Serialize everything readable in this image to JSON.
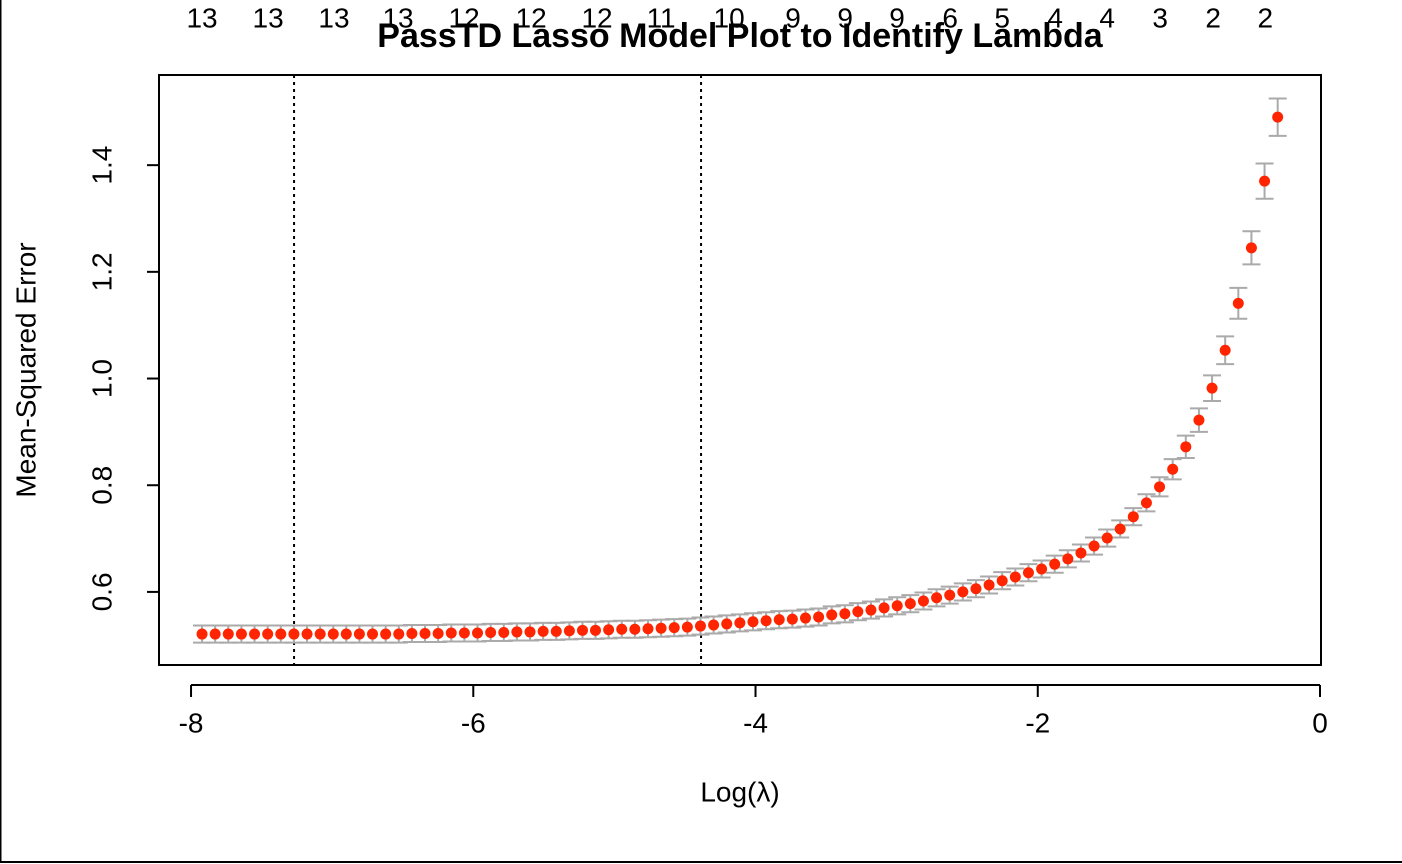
{
  "chart_data": {
    "type": "scatter",
    "title": "PassTD Lasso Model Plot to Identify Lambda",
    "x_label": "Log(λ)",
    "y_label": "Mean-Squared Error",
    "xlim": [
      -8.227,
      0.007
    ],
    "ylim": [
      0.463,
      1.569
    ],
    "xticks": [
      -8,
      -6,
      -4,
      -2,
      0
    ],
    "yticks": [
      0.6,
      0.8,
      {
        "value": 1,
        "label": "1.0"
      },
      1.2,
      1.4
    ],
    "color": "#ff2500",
    "error_color": "#aaaaaa",
    "x": [
      -7.922,
      -7.829,
      -7.736,
      -7.643,
      -7.55,
      -7.457,
      -7.364,
      -7.271,
      -7.178,
      -7.085,
      -6.992,
      -6.9,
      -6.807,
      -6.714,
      -6.621,
      -6.528,
      -6.435,
      -6.342,
      -6.249,
      -6.156,
      -6.063,
      -5.97,
      -5.877,
      -5.784,
      -5.691,
      -5.598,
      -5.505,
      -5.412,
      -5.319,
      -5.226,
      -5.134,
      -5.041,
      -4.948,
      -4.855,
      -4.762,
      -4.669,
      -4.576,
      -4.483,
      -4.39,
      -4.297,
      -4.204,
      -4.111,
      -4.018,
      -3.925,
      -3.832,
      -3.739,
      -3.646,
      -3.553,
      -3.46,
      -3.367,
      -3.275,
      -3.182,
      -3.089,
      -2.996,
      -2.903,
      -2.81,
      -2.717,
      -2.624,
      -2.531,
      -2.438,
      -2.345,
      -2.252,
      -2.159,
      -2.066,
      -1.973,
      -1.88,
      -1.787,
      -1.694,
      -1.601,
      -1.508,
      -1.416,
      -1.323,
      -1.23,
      -1.137,
      -1.044,
      -0.951,
      -0.858,
      -0.765,
      -0.672,
      -0.579,
      -0.486,
      -0.393,
      -0.3
    ],
    "values": [
      0.521,
      0.521,
      0.521,
      0.521,
      0.521,
      0.521,
      0.521,
      0.521,
      0.521,
      0.521,
      0.521,
      0.521,
      0.521,
      0.521,
      0.521,
      0.521,
      0.522,
      0.522,
      0.522,
      0.523,
      0.523,
      0.523,
      0.524,
      0.524,
      0.525,
      0.525,
      0.526,
      0.526,
      0.527,
      0.528,
      0.528,
      0.529,
      0.53,
      0.53,
      0.531,
      0.532,
      0.533,
      0.534,
      0.536,
      0.538,
      0.54,
      0.542,
      0.544,
      0.546,
      0.548,
      0.549,
      0.551,
      0.553,
      0.557,
      0.559,
      0.563,
      0.566,
      0.57,
      0.574,
      0.578,
      0.583,
      0.589,
      0.594,
      0.6,
      0.606,
      0.613,
      0.621,
      0.628,
      0.636,
      0.643,
      0.652,
      0.662,
      0.673,
      0.686,
      0.701,
      0.718,
      0.741,
      0.767,
      0.797,
      0.83,
      0.872,
      0.922,
      0.982,
      1.053,
      1.141,
      1.245,
      1.37,
      1.49
    ],
    "errors": [
      0.016,
      0.016,
      0.016,
      0.016,
      0.016,
      0.016,
      0.016,
      0.016,
      0.016,
      0.016,
      0.016,
      0.016,
      0.016,
      0.016,
      0.016,
      0.016,
      0.016,
      0.016,
      0.016,
      0.016,
      0.016,
      0.016,
      0.016,
      0.016,
      0.016,
      0.016,
      0.016,
      0.016,
      0.016,
      0.016,
      0.016,
      0.016,
      0.016,
      0.016,
      0.016,
      0.016,
      0.016,
      0.016,
      0.016,
      0.016,
      0.016,
      0.016,
      0.016,
      0.016,
      0.016,
      0.016,
      0.016,
      0.016,
      0.016,
      0.016,
      0.016,
      0.016,
      0.016,
      0.016,
      0.016,
      0.016,
      0.016,
      0.016,
      0.016,
      0.016,
      0.016,
      0.016,
      0.016,
      0.016,
      0.016,
      0.016,
      0.016,
      0.016,
      0.016,
      0.016,
      0.016,
      0.016,
      0.016,
      0.018,
      0.019,
      0.021,
      0.022,
      0.024,
      0.026,
      0.029,
      0.031,
      0.033,
      0.035
    ],
    "vlines": [
      -7.27,
      -4.386
    ],
    "top_labels": {
      "x": [
        -7.922,
        -7.454,
        -6.987,
        -6.533,
        -6.065,
        -5.59,
        -5.123,
        -4.669,
        -4.187,
        -3.734,
        -3.365,
        -2.997,
        -2.621,
        -2.252,
        -1.877,
        -1.508,
        -1.133,
        -0.757,
        -0.388
      ],
      "labels": [
        13,
        13,
        13,
        13,
        12,
        12,
        12,
        11,
        10,
        9,
        9,
        9,
        6,
        5,
        4,
        4,
        3,
        2,
        2
      ]
    }
  }
}
